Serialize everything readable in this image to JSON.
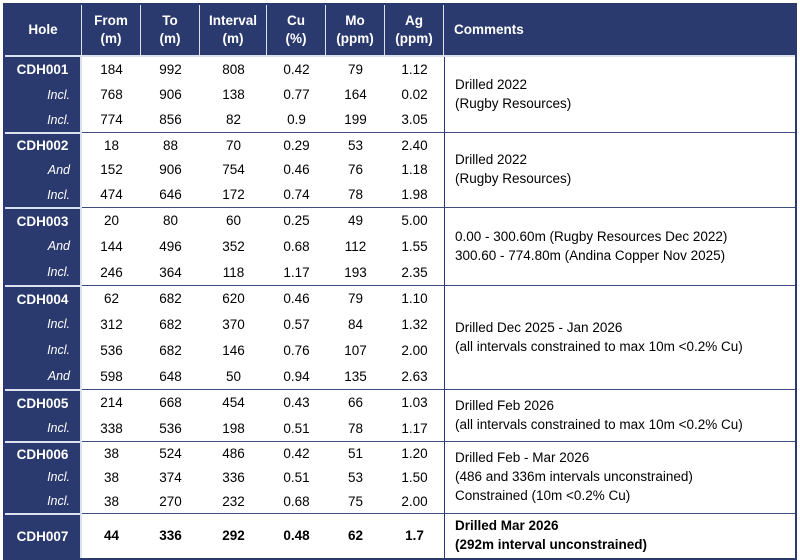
{
  "columns": [
    {
      "id": "hole",
      "line1": "Hole"
    },
    {
      "id": "from",
      "line1": "From",
      "line2": "(m)"
    },
    {
      "id": "to",
      "line1": "To",
      "line2": "(m)"
    },
    {
      "id": "interval",
      "line1": "Interval",
      "line2": "(m)"
    },
    {
      "id": "cu",
      "line1": "Cu",
      "line2": "(%)"
    },
    {
      "id": "mo",
      "line1": "Mo",
      "line2": "(ppm)"
    },
    {
      "id": "ag",
      "line1": "Ag",
      "line2": "(ppm)"
    },
    {
      "id": "comments",
      "line1": "Comments"
    }
  ],
  "colors": {
    "navy": "#2b3a6e",
    "light_separator": "#dce1f0",
    "group_line": "#3e4b7d",
    "header_text": "#ffffff",
    "body_text": "#000000"
  },
  "groups": [
    {
      "comment": [
        "Drilled 2022",
        "(Rugby Resources)"
      ],
      "rows": [
        {
          "label": "CDH001",
          "from": "184",
          "to": "992",
          "interval": "808",
          "cu": "0.42",
          "mo": "79",
          "ag": "1.12"
        },
        {
          "label": "Incl.",
          "from": "768",
          "to": "906",
          "interval": "138",
          "cu": "0.77",
          "mo": "164",
          "ag": "0.02"
        },
        {
          "label": "Incl.",
          "from": "774",
          "to": "856",
          "interval": "82",
          "cu": "0.9",
          "mo": "199",
          "ag": "3.05"
        }
      ]
    },
    {
      "comment": [
        "Drilled 2022",
        "(Rugby Resources)"
      ],
      "rows": [
        {
          "label": "CDH002",
          "from": "18",
          "to": "88",
          "interval": "70",
          "cu": "0.29",
          "mo": "53",
          "ag": "2.40"
        },
        {
          "label": "And",
          "from": "152",
          "to": "906",
          "interval": "754",
          "cu": "0.46",
          "mo": "76",
          "ag": "1.18"
        },
        {
          "label": "Incl.",
          "from": "474",
          "to": "646",
          "interval": "172",
          "cu": "0.74",
          "mo": "78",
          "ag": "1.98"
        }
      ]
    },
    {
      "comment": [
        "0.00 - 300.60m (Rugby Resources Dec 2022)",
        "300.60 - 774.80m (Andina Copper Nov 2025)"
      ],
      "rows": [
        {
          "label": "CDH003",
          "from": "20",
          "to": "80",
          "interval": "60",
          "cu": "0.25",
          "mo": "49",
          "ag": "5.00"
        },
        {
          "label": "And",
          "from": "144",
          "to": "496",
          "interval": "352",
          "cu": "0.68",
          "mo": "112",
          "ag": "1.55"
        },
        {
          "label": "Incl.",
          "from": "246",
          "to": "364",
          "interval": "118",
          "cu": "1.17",
          "mo": "193",
          "ag": "2.35"
        }
      ]
    },
    {
      "comment": [
        "Drilled Dec 2025 - Jan 2026",
        "(all intervals constrained to max 10m <0.2% Cu)"
      ],
      "rows": [
        {
          "label": "CDH004",
          "from": "62",
          "to": "682",
          "interval": "620",
          "cu": "0.46",
          "mo": "79",
          "ag": "1.10"
        },
        {
          "label": "Incl.",
          "from": "312",
          "to": "682",
          "interval": "370",
          "cu": "0.57",
          "mo": "84",
          "ag": "1.32"
        },
        {
          "label": "Incl.",
          "from": "536",
          "to": "682",
          "interval": "146",
          "cu": "0.76",
          "mo": "107",
          "ag": "2.00"
        },
        {
          "label": "And",
          "from": "598",
          "to": "648",
          "interval": "50",
          "cu": "0.94",
          "mo": "135",
          "ag": "2.63"
        }
      ]
    },
    {
      "comment": [
        "Drilled Feb 2026",
        "(all intervals constrained to max 10m <0.2% Cu)"
      ],
      "rows": [
        {
          "label": "CDH005",
          "from": "214",
          "to": "668",
          "interval": "454",
          "cu": "0.43",
          "mo": "66",
          "ag": "1.03"
        },
        {
          "label": "Incl.",
          "from": "338",
          "to": "536",
          "interval": "198",
          "cu": "0.51",
          "mo": "78",
          "ag": "1.17"
        }
      ]
    },
    {
      "comment": [
        "Drilled Feb - Mar 2026",
        "(486 and 336m intervals unconstrained)",
        "Constrained (10m <0.2% Cu)"
      ],
      "rows": [
        {
          "label": "CDH006",
          "from": "38",
          "to": "524",
          "interval": "486",
          "cu": "0.42",
          "mo": "51",
          "ag": "1.20"
        },
        {
          "label": "Incl.",
          "from": "38",
          "to": "374",
          "interval": "336",
          "cu": "0.51",
          "mo": "53",
          "ag": "1.50"
        },
        {
          "label": "Incl.",
          "from": "38",
          "to": "270",
          "interval": "232",
          "cu": "0.68",
          "mo": "75",
          "ag": "2.00"
        }
      ]
    },
    {
      "bold": true,
      "comment": [
        "Drilled Mar 2026",
        "(292m interval unconstrained)"
      ],
      "rows": [
        {
          "label": "CDH007",
          "from": "44",
          "to": "336",
          "interval": "292",
          "cu": "0.48",
          "mo": "62",
          "ag": "1.7"
        }
      ]
    }
  ]
}
